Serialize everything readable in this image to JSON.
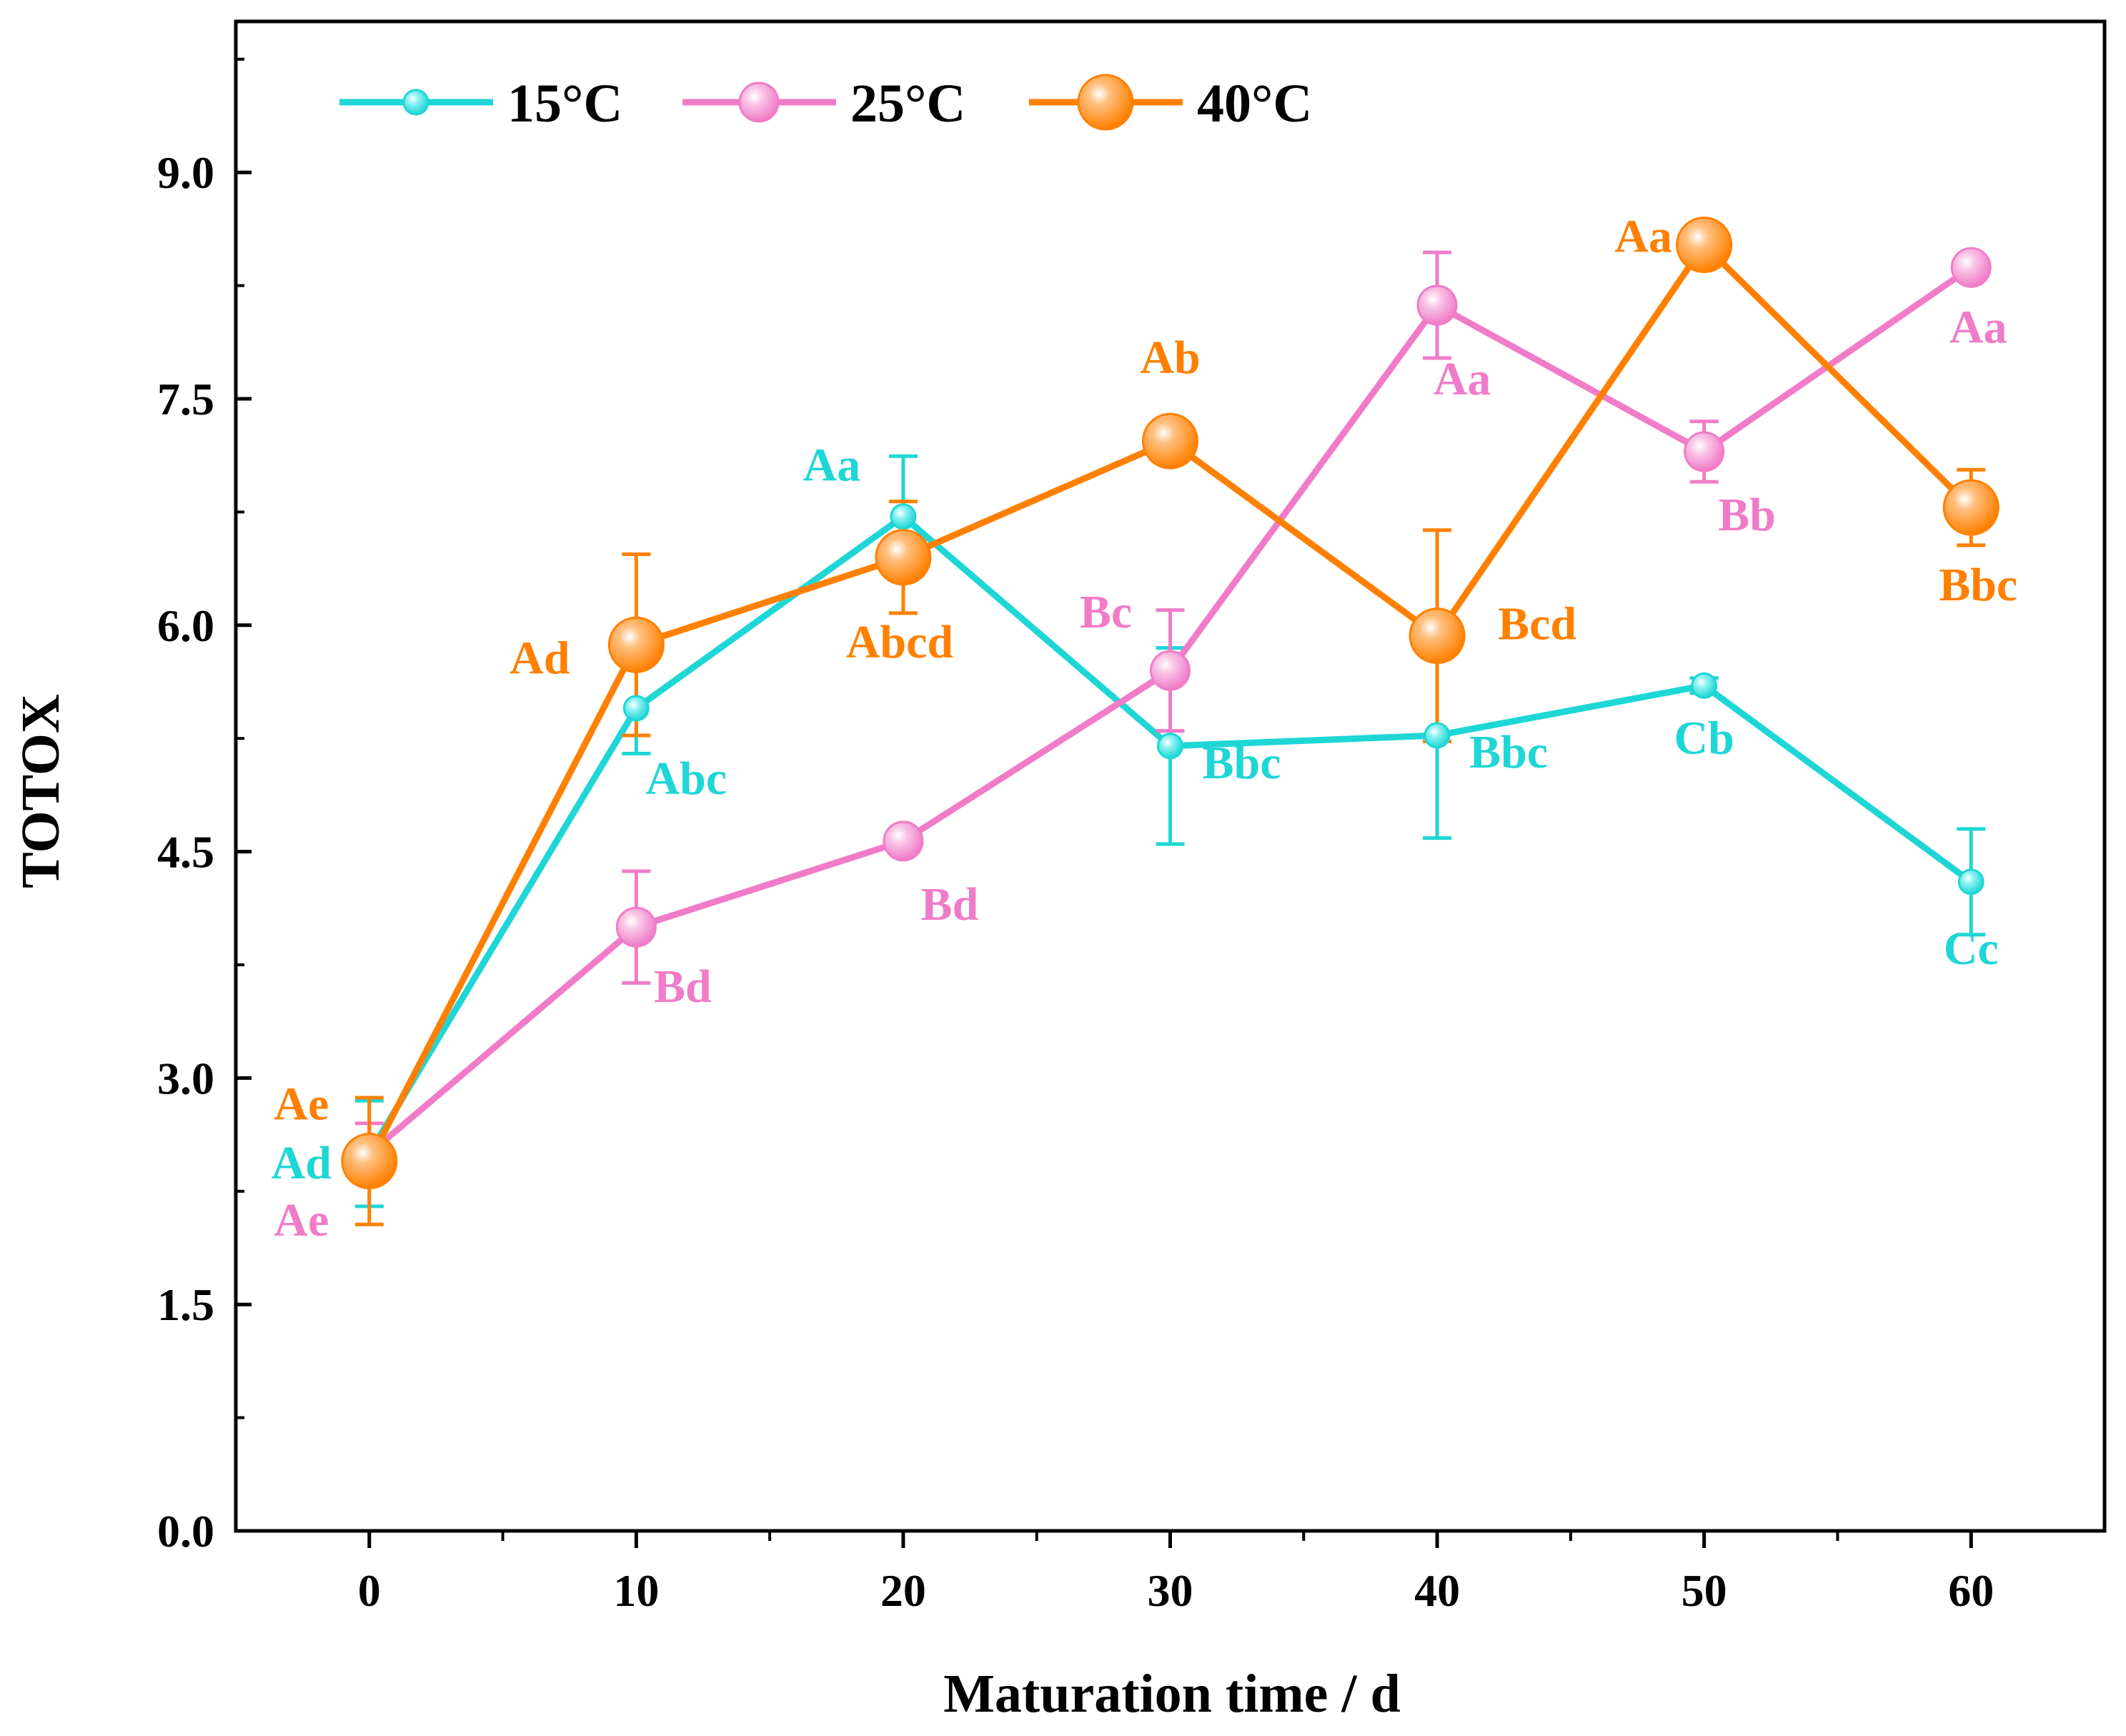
{
  "chart_data": {
    "type": "line",
    "xlabel": "Maturation time / d",
    "ylabel": "TOTOX",
    "xlim": [
      -5,
      65
    ],
    "ylim": [
      0,
      10
    ],
    "x_ticks": [
      "0",
      "10",
      "20",
      "30",
      "40",
      "50",
      "60"
    ],
    "y_ticks": [
      "0.0",
      "1.5",
      "3.0",
      "4.5",
      "6.0",
      "7.5",
      "9.0"
    ],
    "x": [
      0,
      10,
      20,
      30,
      40,
      50,
      60
    ],
    "legend_position": "top-left",
    "series": [
      {
        "name": "15°C",
        "color": "#1fd6d6",
        "marker": "small-sphere",
        "values": [
          2.5,
          5.45,
          6.72,
          5.2,
          5.27,
          5.6,
          4.3
        ],
        "errors": [
          0.35,
          0.3,
          0.4,
          0.65,
          0.68,
          0.05,
          0.35
        ],
        "labels": [
          "Ad",
          "Abc",
          "Aa",
          "Bbc",
          "Bbc",
          "Cb",
          "Cc"
        ]
      },
      {
        "name": "25°C",
        "color": "#f07cc8",
        "marker": "medium-sphere",
        "values": [
          2.5,
          4.0,
          4.57,
          5.7,
          8.12,
          7.15,
          8.37
        ],
        "errors": [
          0.2,
          0.37,
          0.05,
          0.4,
          0.35,
          0.2,
          0.05
        ],
        "labels": [
          "Ae",
          "Bd",
          "Bd",
          "Bc",
          "Aa",
          "Bb",
          "Aa"
        ]
      },
      {
        "name": "40°C",
        "color": "#ff8000",
        "marker": "large-sphere",
        "values": [
          2.45,
          5.87,
          6.45,
          7.22,
          5.93,
          8.52,
          6.78
        ],
        "errors": [
          0.42,
          0.6,
          0.37,
          0.05,
          0.7,
          0.08,
          0.25
        ],
        "labels": [
          "Ae",
          "Ad",
          "Abcd",
          "Ab",
          "Bcd",
          "Aa",
          "Bbc"
        ]
      }
    ]
  }
}
